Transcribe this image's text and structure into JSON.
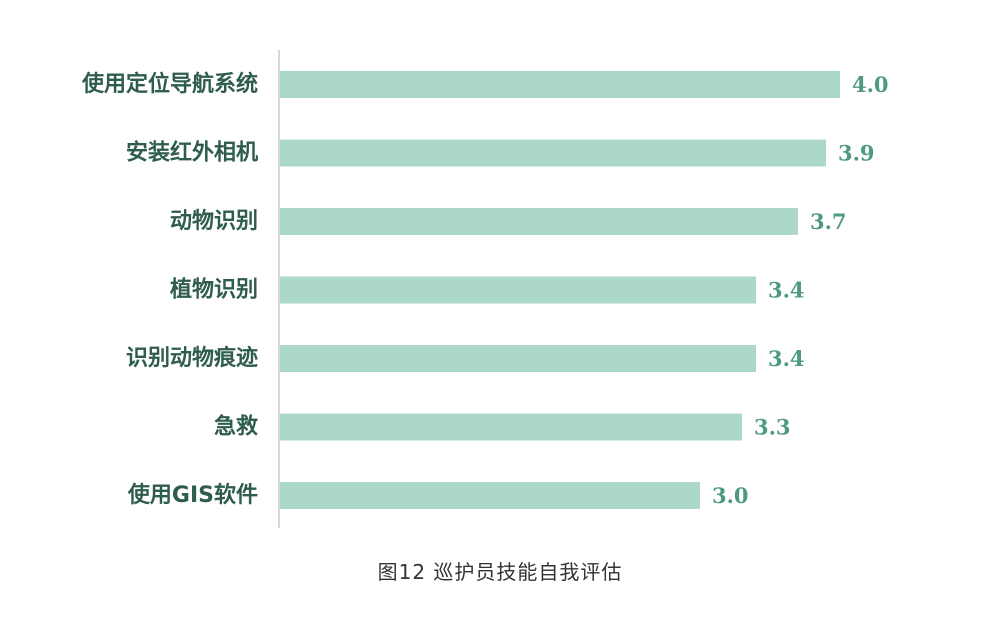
{
  "chart_data": {
    "type": "bar",
    "orientation": "horizontal",
    "categories": [
      "使用定位导航系统",
      "安装红外相机",
      "动物识别",
      "植物识别",
      "识别动物痕迹",
      "急救",
      "使用GIS软件"
    ],
    "values": [
      4.0,
      3.9,
      3.7,
      3.4,
      3.4,
      3.3,
      3.0
    ],
    "value_labels": [
      "4.0",
      "3.9",
      "3.7",
      "3.4",
      "3.4",
      "3.3",
      "3.0"
    ],
    "xlim": [
      0,
      5
    ],
    "grid": false,
    "legend": "none",
    "colors": {
      "bar": "#acd8c9",
      "value_text": "#4e9a80",
      "category_text": "#2f5d4d",
      "axis": "#cccccc"
    }
  },
  "caption": "图12  巡护员技能自我评估"
}
